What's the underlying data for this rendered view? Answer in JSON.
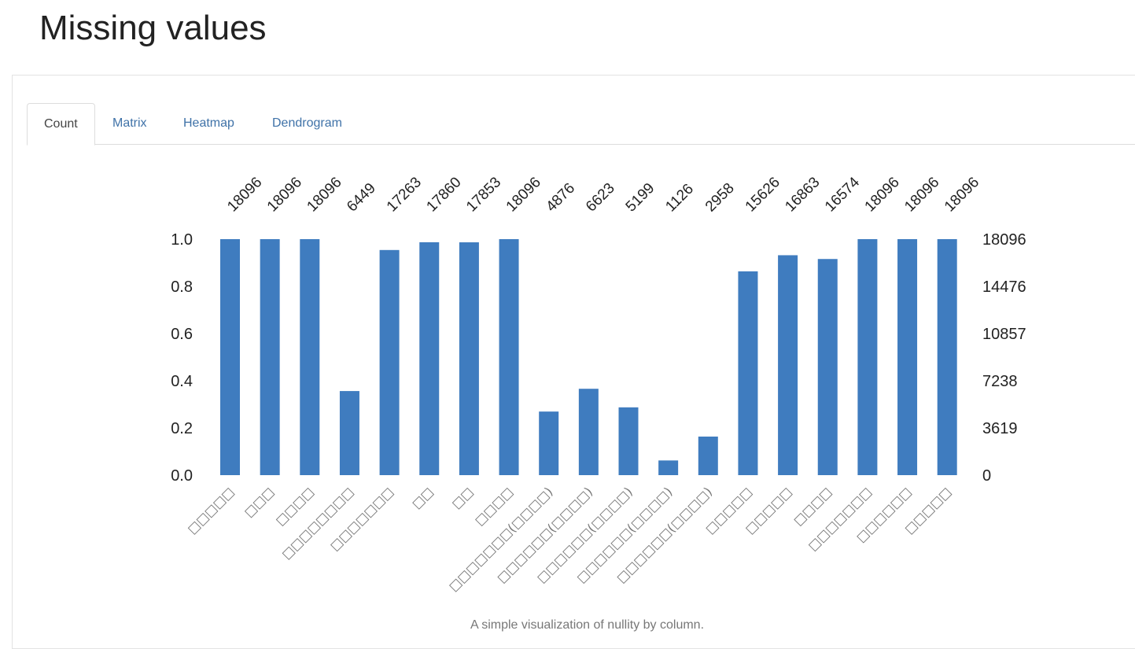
{
  "page": {
    "title": "Missing values"
  },
  "tabs": [
    {
      "label": "Count",
      "active": true
    },
    {
      "label": "Matrix",
      "active": false
    },
    {
      "label": "Heatmap",
      "active": false
    },
    {
      "label": "Dendrogram",
      "active": false
    }
  ],
  "caption": "A simple visualization of nullity by column.",
  "chart_data": {
    "type": "bar",
    "bar_color": "#3f7cbf",
    "total": 18096,
    "categories": [
      "□□□□□",
      "□□□",
      "□□□□",
      "□□□□□□□□",
      "□□□□□□□",
      "□□",
      "□□",
      "□□□□",
      "□□□□□□□(□□□□)",
      "□□□□□□(□□□□)",
      "□□□□□□(□□□□)",
      "□□□□□□(□□□□)",
      "□□□□□□(□□□□)",
      "□□□□□",
      "□□□□□",
      "□□□□",
      "□□□□□□□",
      "□□□□□□",
      "□□□□□"
    ],
    "counts": [
      18096,
      18096,
      18096,
      6449,
      17263,
      17860,
      17853,
      18096,
      4876,
      6623,
      5199,
      1126,
      2958,
      15626,
      16863,
      16574,
      18096,
      18096,
      18096
    ],
    "left_axis": {
      "ticks": [
        "0.0",
        "0.2",
        "0.4",
        "0.6",
        "0.8",
        "1.0"
      ],
      "ylim": [
        0,
        1
      ]
    },
    "right_axis": {
      "ticks": [
        "0",
        "3619",
        "7238",
        "10857",
        "14476",
        "18096"
      ]
    },
    "grid": false,
    "legend": "none"
  }
}
